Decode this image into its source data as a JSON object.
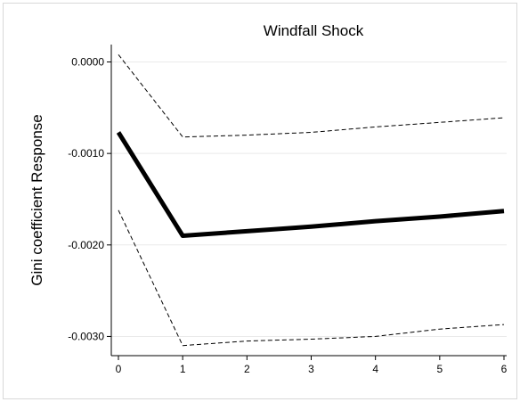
{
  "chart_data": {
    "type": "line",
    "title": "Windfall Shock",
    "xlabel": "",
    "ylabel": "Gini coefficient Response",
    "x": [
      0,
      1,
      2,
      3,
      4,
      5,
      6
    ],
    "xticks": [
      "0",
      "1",
      "2",
      "3",
      "4",
      "5",
      "6"
    ],
    "yticks": [
      0.0,
      -0.001,
      -0.002,
      -0.003
    ],
    "ytick_labels": [
      "0.0000",
      "-0.0010",
      "-0.0020",
      "-0.0030"
    ],
    "xlim": [
      0,
      6
    ],
    "ylim": [
      -0.00321,
      0.00019
    ],
    "grid": "horizontal",
    "series": [
      {
        "values": [
          -0.00077,
          -0.0019,
          -0.00185,
          -0.0018,
          -0.00174,
          -0.00169,
          -0.00163
        ],
        "style": "solid",
        "color": "#000000"
      },
      {
        "values": [
          8e-05,
          -0.00082,
          -0.0008,
          -0.00077,
          -0.00071,
          -0.00066,
          -0.00061
        ],
        "style": "dashed",
        "color": "#000000"
      },
      {
        "values": [
          -0.00162,
          -0.0031,
          -0.00305,
          -0.00303,
          -0.003,
          -0.00292,
          -0.00287
        ],
        "style": "dashed",
        "color": "#000000"
      }
    ]
  }
}
